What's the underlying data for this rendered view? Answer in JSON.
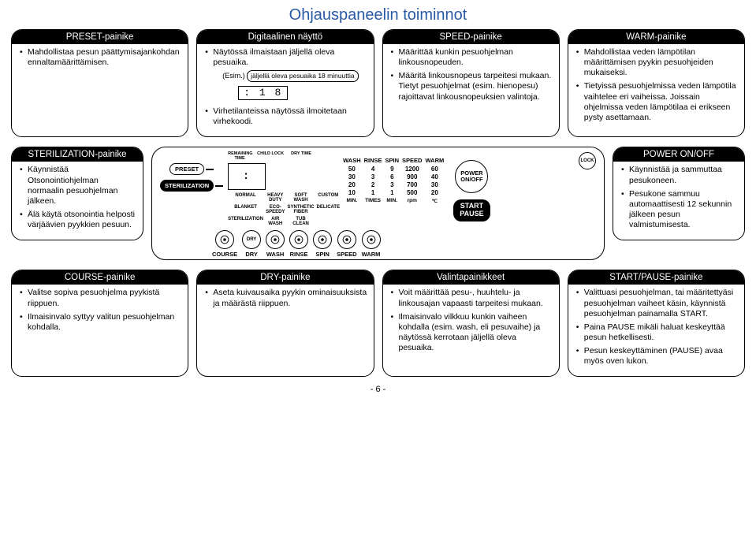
{
  "title": "Ohjauspaneelin toiminnot",
  "page_number": "- 6 -",
  "colors": {
    "title": "#2a5aa5",
    "header_bg": "#000000",
    "header_fg": "#ffffff"
  },
  "top": {
    "preset": {
      "header": "PRESET-painike",
      "items": [
        "Mahdollistaa pesun päättymisajankohdan ennaltamäärittämisen."
      ]
    },
    "display": {
      "header": "Digitaalinen näyttö",
      "lead": "Näytössä ilmaistaan jäljellä oleva pesuaika.",
      "example_prefix": "(Esim.)",
      "example_chip": "jäljellä oleva pesuaika 18 minuuttia",
      "seg": ": 1 8",
      "tail": "Virhetilanteissa näytössä ilmoitetaan virhekoodi."
    },
    "speed": {
      "header": "SPEED-painike",
      "items": [
        "Määrittää kunkin pesuohjelman linkousnopeuden.",
        "Määritä linkousnopeus tarpeitesi mukaan. Tietyt pesuohjelmat (esim. hienopesu) rajoittavat linkousnopeuksien valintoja."
      ]
    },
    "warm": {
      "header": "WARM-painike",
      "items": [
        "Mahdollistaa veden lämpötilan määrittämisen pyykin pesuohjeiden mukaiseksi.",
        "Tietyissä pesuohjelmissa veden lämpötila vaihtelee eri vaiheissa. Joissain ohjelmissa veden lämpötilaa ei erikseen pysty asettamaan."
      ]
    }
  },
  "mid": {
    "sterilization": {
      "header": "STERILIZATION-painike",
      "items": [
        "Käynnistää Otsonointiohjelman normaalin pesuohjelman jälkeen.",
        "Älä käytä otsonointia helposti värjäävien pyykkien pesuun."
      ]
    },
    "power": {
      "header": "POWER ON/OFF",
      "items": [
        "Käynnistää ja sammuttaa pesukoneen.",
        "Pesukone sammuu automaattisesti 12 sekunnin jälkeen pesun valmistumisesta."
      ]
    }
  },
  "panel": {
    "preset_btn": "PRESET",
    "sterilization_btn": "STERILIZATION",
    "digital": ":",
    "tinyheads": [
      "REMAINING\nTIME",
      "CHILD LOCK",
      "DRY TIME"
    ],
    "modes": [
      "NORMAL",
      "HEAVY DUTY",
      "SOFT WASH",
      "CUSTOM",
      "BLANKET",
      "ECO-SPEEDY",
      "SYNTHETIC\nFIBER",
      "DELICATE",
      "STERILIZATION",
      "AIR WASH",
      "TUB CLEAN",
      ""
    ],
    "cols": {
      "wash": {
        "label": "WASH",
        "vals": [
          "50",
          "30",
          "20",
          "10"
        ],
        "foot": "MIN."
      },
      "rinse": {
        "label": "RINSE",
        "vals": [
          "4",
          "3",
          "2",
          "1"
        ],
        "foot": "TIMES"
      },
      "spin": {
        "label": "SPIN",
        "vals": [
          "9",
          "6",
          "3",
          "1"
        ],
        "foot": "MIN."
      },
      "speed": {
        "label": "SPEED",
        "vals": [
          "1200",
          "900",
          "700",
          "500"
        ],
        "foot": "rpm"
      },
      "warm": {
        "label": "WARM",
        "vals": [
          "60",
          "40",
          "30",
          "20"
        ],
        "foot": "℃"
      }
    },
    "lock": "LOCK",
    "power_btn": "POWER\nON/OFF",
    "startpause": "START\nPAUSE",
    "knobs": [
      "COURSE",
      "DRY",
      "WASH",
      "RINSE",
      "SPIN",
      "SPEED",
      "WARM"
    ],
    "dry_knob_text": "DRY"
  },
  "bottom": {
    "course": {
      "header": "COURSE-painike",
      "items": [
        "Valitse sopiva pesuohjelma pyykistä riippuen.",
        "Ilmaisinvalo syttyy valitun pesuohjelman kohdalla."
      ]
    },
    "dry": {
      "header": "DRY-painike",
      "items": [
        "Aseta kuivausaika pyykin ominaisuuksista ja määrästä riippuen."
      ]
    },
    "select": {
      "header": "Valintapainikkeet",
      "items": [
        "Voit määrittää pesu-, huuhtelu- ja linkousajan vapaasti tarpeitesi mukaan.",
        "Ilmaisinvalo vilkkuu kunkin vaiheen kohdalla (esim. wash, eli pesuvaihe) ja näytössä kerrotaan jäljellä oleva pesuaika."
      ]
    },
    "startpause": {
      "header": "START/PAUSE-painike",
      "items": [
        "Valittuasi pesuohjelman, tai määritettyäsi pesuohjelman vaiheet käsin, käynnistä pesuohjelman painamalla START.",
        "Paina PAUSE mikäli haluat keskeyttää pesun hetkellisesti.",
        "Pesun keskeyttäminen (PAUSE) avaa myös oven lukon."
      ]
    }
  }
}
